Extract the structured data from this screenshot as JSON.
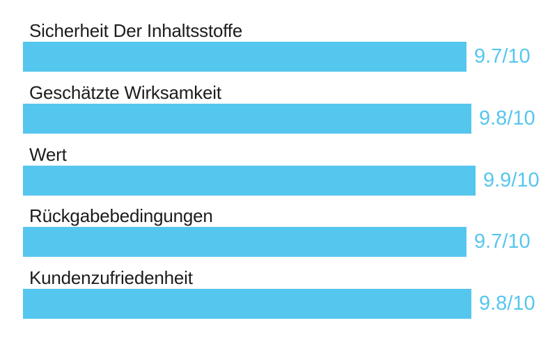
{
  "chart_data": {
    "type": "bar",
    "orientation": "horizontal",
    "title": "",
    "categories": [
      "Sicherheit Der Inhaltsstoffe",
      "Geschätzte Wirksamkeit",
      "Wert",
      "Rückgabebedingungen",
      "Kundenzufriedenheit"
    ],
    "values": [
      9.7,
      9.8,
      9.9,
      9.7,
      9.8
    ],
    "value_labels": [
      "9.7/10",
      "9.8/10",
      "9.9/10",
      "9.7/10",
      "9.8/10"
    ],
    "scale_max": 10,
    "xlim": [
      0,
      10
    ],
    "grid": false,
    "legend": false,
    "bar_color": "#55C6EE",
    "value_text_color": "#55C6EE",
    "label_text_color": "#1c1c1c",
    "background_color": "#FFFFFF"
  }
}
